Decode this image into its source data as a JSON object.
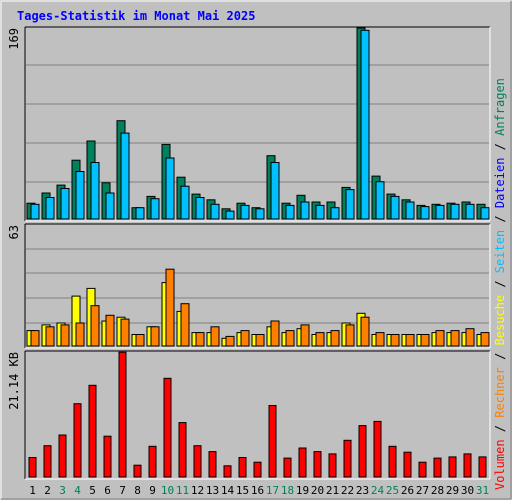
{
  "title": "Tages-Statistik im Monat Mai 2025",
  "colors": {
    "title": "#0000ff",
    "background": "#c0c0c0",
    "gridline": "#808080",
    "weekend_label": "#00805c",
    "weekday_label": "#000000"
  },
  "legend": {
    "separator": " / ",
    "items": [
      {
        "label": "Anfragen",
        "color": "#00805c"
      },
      {
        "label": "Dateien",
        "color": "#0000ff"
      },
      {
        "label": "Seiten",
        "color": "#00c0ff"
      },
      {
        "label": "Besuche",
        "color": "#ffff00"
      },
      {
        "label": "Rechner",
        "color": "#ff8000"
      },
      {
        "label": "Volumen",
        "color": "#ff0000"
      }
    ]
  },
  "chart_data": [
    {
      "type": "bar",
      "panel": "requests",
      "axis_max_label": "169",
      "ylim": [
        0,
        169
      ],
      "grid": true,
      "categories": [
        "1",
        "2",
        "3",
        "4",
        "5",
        "6",
        "7",
        "8",
        "9",
        "10",
        "11",
        "12",
        "13",
        "14",
        "15",
        "16",
        "17",
        "18",
        "19",
        "20",
        "21",
        "22",
        "23",
        "24",
        "25",
        "26",
        "27",
        "28",
        "29",
        "30",
        "31"
      ],
      "series": [
        {
          "name": "Anfragen",
          "color": "#00805c",
          "values": [
            14,
            23,
            30,
            52,
            69,
            32,
            87,
            10,
            20,
            66,
            37,
            22,
            17,
            9,
            14,
            10,
            56,
            14,
            21,
            15,
            15,
            28,
            169,
            38,
            22,
            17,
            12,
            13,
            14,
            15,
            13
          ]
        },
        {
          "name": "Seiten",
          "color": "#00c0ff",
          "values": [
            13,
            19,
            27,
            42,
            50,
            23,
            76,
            10,
            18,
            54,
            29,
            19,
            13,
            7,
            12,
            9,
            50,
            12,
            15,
            12,
            10,
            26,
            167,
            33,
            20,
            15,
            11,
            12,
            13,
            13,
            10
          ]
        }
      ]
    },
    {
      "type": "bar",
      "panel": "visits",
      "axis_max_label": "63",
      "ylim": [
        0,
        63
      ],
      "grid": true,
      "categories": [
        "1",
        "2",
        "3",
        "4",
        "5",
        "6",
        "7",
        "8",
        "9",
        "10",
        "11",
        "12",
        "13",
        "14",
        "15",
        "16",
        "17",
        "18",
        "19",
        "20",
        "21",
        "22",
        "23",
        "24",
        "25",
        "26",
        "27",
        "28",
        "29",
        "30",
        "31"
      ],
      "series": [
        {
          "name": "Besuche",
          "color": "#ffff00",
          "values": [
            8,
            11,
            12,
            26,
            30,
            13,
            15,
            6,
            10,
            33,
            18,
            7,
            7,
            4,
            7,
            6,
            10,
            7,
            9,
            6,
            7,
            12,
            17,
            6,
            6,
            6,
            6,
            7,
            7,
            7,
            6
          ]
        },
        {
          "name": "Rechner",
          "color": "#ff8000",
          "values": [
            8,
            10,
            11,
            12,
            21,
            16,
            14,
            6,
            10,
            40,
            22,
            7,
            10,
            5,
            8,
            6,
            13,
            8,
            11,
            7,
            8,
            11,
            15,
            7,
            6,
            6,
            6,
            8,
            8,
            9,
            7
          ]
        }
      ]
    },
    {
      "type": "bar",
      "panel": "volume",
      "axis_max_label": "21.14 KB",
      "ylim": [
        0,
        21.14
      ],
      "grid": false,
      "categories": [
        "1",
        "2",
        "3",
        "4",
        "5",
        "6",
        "7",
        "8",
        "9",
        "10",
        "11",
        "12",
        "13",
        "14",
        "15",
        "16",
        "17",
        "18",
        "19",
        "20",
        "21",
        "22",
        "23",
        "24",
        "25",
        "26",
        "27",
        "28",
        "29",
        "30",
        "31"
      ],
      "series": [
        {
          "name": "Volumen",
          "color": "#ff0000",
          "values": [
            3.3,
            5.3,
            7.1,
            12.4,
            15.5,
            6.9,
            21.1,
            2.0,
            5.2,
            16.7,
            9.2,
            5.3,
            4.3,
            1.9,
            3.3,
            2.5,
            12.1,
            3.2,
            4.9,
            4.3,
            3.9,
            6.2,
            8.7,
            9.4,
            5.2,
            4.2,
            2.5,
            3.2,
            3.4,
            3.9,
            3.4
          ]
        }
      ]
    }
  ],
  "x_axis": {
    "labels": [
      "1",
      "2",
      "3",
      "4",
      "5",
      "6",
      "7",
      "8",
      "9",
      "10",
      "11",
      "12",
      "13",
      "14",
      "15",
      "16",
      "17",
      "18",
      "19",
      "20",
      "21",
      "22",
      "23",
      "24",
      "25",
      "26",
      "27",
      "28",
      "29",
      "30",
      "31"
    ],
    "weekend_days": [
      "3",
      "4",
      "10",
      "11",
      "17",
      "18",
      "24",
      "25",
      "31"
    ]
  }
}
